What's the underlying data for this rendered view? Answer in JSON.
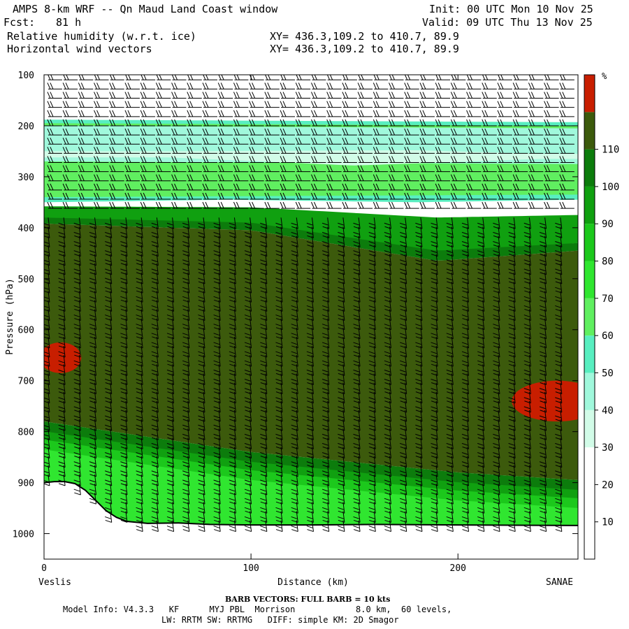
{
  "header": {
    "title": "AMPS 8-km WRF -- Qn Maud Land Coast window",
    "fcst_label": "Fcst:",
    "fcst_value": "81 h",
    "field1": "Relative humidity (w.r.t. ice)",
    "field2": "Horizontal wind vectors",
    "init": "Init: 00 UTC Mon 10 Nov 25",
    "valid": "Valid: 09 UTC Thu 13 Nov 25",
    "xy1": "XY= 436.3,109.2 to 410.7, 89.9",
    "xy2": "XY= 436.3,109.2 to 410.7, 89.9"
  },
  "chart_data": {
    "type": "heatmap",
    "title": "Relative humidity (w.r.t. ice)",
    "xlabel": "Distance (km)",
    "ylabel": "Pressure (hPa)",
    "xlim": [
      0,
      258
    ],
    "ylim": [
      1050,
      100
    ],
    "x_ticks": [
      0,
      100,
      200
    ],
    "y_ticks": [
      100,
      200,
      300,
      400,
      500,
      600,
      700,
      800,
      900,
      1000
    ],
    "x_start_label": "Veslis",
    "x_end_label": "SANAE",
    "colorbar_unit": "%",
    "colorbar_levels": [
      10,
      20,
      30,
      40,
      50,
      60,
      70,
      80,
      90,
      100,
      110
    ],
    "colorbar_colors": [
      "#ffffff",
      "#ffffff",
      "#ffffff",
      "#d2fce8",
      "#a0f8dc",
      "#58eec0",
      "#60ef60",
      "#30e630",
      "#1cc81c",
      "#10a010",
      "#0c7c0c",
      "#3c5a0c",
      "#c81e00"
    ],
    "terrain": [
      {
        "x": 0,
        "p": 900
      },
      {
        "x": 5,
        "p": 898
      },
      {
        "x": 10,
        "p": 898
      },
      {
        "x": 15,
        "p": 902
      },
      {
        "x": 20,
        "p": 915
      },
      {
        "x": 25,
        "p": 935
      },
      {
        "x": 30,
        "p": 955
      },
      {
        "x": 35,
        "p": 968
      },
      {
        "x": 40,
        "p": 976
      },
      {
        "x": 50,
        "p": 980
      },
      {
        "x": 65,
        "p": 979
      },
      {
        "x": 80,
        "p": 982
      },
      {
        "x": 100,
        "p": 983
      },
      {
        "x": 130,
        "p": 983
      },
      {
        "x": 160,
        "p": 982
      },
      {
        "x": 200,
        "p": 983
      },
      {
        "x": 258,
        "p": 984
      }
    ],
    "rh_bands": [
      {
        "level": 40,
        "top": [
          {
            "x": 0,
            "p": 188
          },
          {
            "x": 258,
            "p": 193
          }
        ],
        "bottom": [
          {
            "x": 0,
            "p": 350
          },
          {
            "x": 90,
            "p": 345
          },
          {
            "x": 180,
            "p": 350
          },
          {
            "x": 258,
            "p": 345
          }
        ]
      },
      {
        "level": 50,
        "top": [
          {
            "x": 0,
            "p": 195
          },
          {
            "x": 258,
            "p": 200
          }
        ],
        "bottom": [
          {
            "x": 0,
            "p": 340
          },
          {
            "x": 258,
            "p": 335
          }
        ]
      },
      {
        "level": 30,
        "top": [
          {
            "x": 0,
            "p": 200
          },
          {
            "x": 258,
            "p": 205
          }
        ],
        "bottom": [
          {
            "x": 0,
            "p": 270
          },
          {
            "x": 258,
            "p": 275
          }
        ]
      },
      {
        "level": 20,
        "top": [
          {
            "x": 60,
            "p": 250
          },
          {
            "x": 180,
            "p": 248
          },
          {
            "x": 240,
            "p": 255
          }
        ],
        "bottom": [
          {
            "x": 60,
            "p": 262
          },
          {
            "x": 150,
            "p": 278
          },
          {
            "x": 240,
            "p": 265
          }
        ]
      },
      {
        "level": 80,
        "top": [
          {
            "x": 0,
            "p": 358
          },
          {
            "x": 100,
            "p": 360
          },
          {
            "x": 190,
            "p": 380
          },
          {
            "x": 258,
            "p": 375
          }
        ],
        "bottom": [
          {
            "x": 0,
            "p": 385
          },
          {
            "x": 100,
            "p": 395
          },
          {
            "x": 190,
            "p": 455
          },
          {
            "x": 258,
            "p": 430
          }
        ]
      },
      {
        "level": 90,
        "top": [
          {
            "x": 0,
            "p": 380
          },
          {
            "x": 100,
            "p": 390
          },
          {
            "x": 190,
            "p": 445
          },
          {
            "x": 258,
            "p": 430
          }
        ],
        "bottom": [
          {
            "x": 0,
            "p": 392
          },
          {
            "x": 100,
            "p": 405
          },
          {
            "x": 190,
            "p": 465
          },
          {
            "x": 258,
            "p": 445
          }
        ]
      },
      {
        "level": 100,
        "top": [
          {
            "x": 0,
            "p": 392
          },
          {
            "x": 100,
            "p": 405
          },
          {
            "x": 190,
            "p": 465
          },
          {
            "x": 258,
            "p": 445
          }
        ],
        "bottom": [
          {
            "x": 0,
            "p": 780
          },
          {
            "x": 100,
            "p": 840
          },
          {
            "x": 200,
            "p": 880
          },
          {
            "x": 258,
            "p": 895
          }
        ]
      }
    ],
    "rh_max_patches": [
      {
        "level": 110,
        "center_x": 8,
        "center_p": 655,
        "half_width_km": 10,
        "half_height_hpa": 30
      },
      {
        "level": 110,
        "center_x": 248,
        "center_p": 740,
        "half_width_km": 22,
        "half_height_hpa": 40
      }
    ],
    "barb_note": "BARB VECTORS: FULL BARB = 10 kts"
  },
  "footer": {
    "line1": "Model Info: V4.3.3   KF      MYJ PBL  Morrison            8.0 km,  60 levels,",
    "line2": "LW: RRTM SW: RRTMG   DIFF: simple KM: 2D Smagor"
  }
}
